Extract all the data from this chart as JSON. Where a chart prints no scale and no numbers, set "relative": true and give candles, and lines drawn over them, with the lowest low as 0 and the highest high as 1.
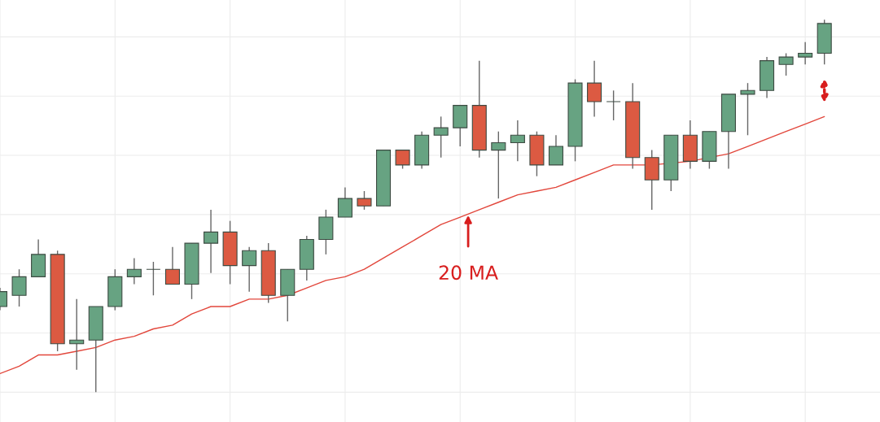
{
  "chart_data": {
    "type": "candlestick",
    "relative": true,
    "grid": true,
    "categories": [
      null,
      null,
      null,
      null,
      null,
      null,
      null,
      null,
      null,
      null,
      null,
      null,
      null,
      null,
      null,
      null,
      null,
      null,
      null,
      null,
      null,
      null,
      null,
      null,
      null,
      null,
      null,
      null,
      null,
      null,
      null,
      null,
      null,
      null,
      null,
      null,
      null,
      null,
      null,
      null,
      null,
      null,
      null,
      null
    ],
    "ohlc": [
      [
        0.23,
        0.28,
        0.22,
        0.27
      ],
      [
        0.26,
        0.33,
        0.23,
        0.31
      ],
      [
        0.31,
        0.41,
        0.31,
        0.37
      ],
      [
        0.37,
        0.38,
        0.11,
        0.13
      ],
      [
        0.13,
        0.25,
        0.06,
        0.14
      ],
      [
        0.14,
        0.23,
        0.0,
        0.23
      ],
      [
        0.23,
        0.33,
        0.22,
        0.31
      ],
      [
        0.31,
        0.36,
        0.29,
        0.33
      ],
      [
        0.33,
        0.35,
        0.26,
        0.33
      ],
      [
        0.33,
        0.39,
        0.29,
        0.29
      ],
      [
        0.29,
        0.4,
        0.25,
        0.4
      ],
      [
        0.4,
        0.49,
        0.32,
        0.43
      ],
      [
        0.43,
        0.46,
        0.29,
        0.34
      ],
      [
        0.34,
        0.39,
        0.27,
        0.38
      ],
      [
        0.38,
        0.4,
        0.24,
        0.26
      ],
      [
        0.26,
        0.33,
        0.19,
        0.33
      ],
      [
        0.33,
        0.42,
        0.3,
        0.41
      ],
      [
        0.41,
        0.49,
        0.37,
        0.47
      ],
      [
        0.47,
        0.55,
        0.47,
        0.52
      ],
      [
        0.52,
        0.54,
        0.49,
        0.5
      ],
      [
        0.5,
        0.65,
        0.5,
        0.65
      ],
      [
        0.65,
        0.65,
        0.6,
        0.61
      ],
      [
        0.61,
        0.7,
        0.6,
        0.69
      ],
      [
        0.69,
        0.74,
        0.63,
        0.71
      ],
      [
        0.71,
        0.77,
        0.66,
        0.77
      ],
      [
        0.77,
        0.89,
        0.63,
        0.65
      ],
      [
        0.65,
        0.7,
        0.52,
        0.67
      ],
      [
        0.67,
        0.73,
        0.62,
        0.69
      ],
      [
        0.69,
        0.7,
        0.58,
        0.61
      ],
      [
        0.61,
        0.69,
        0.61,
        0.66
      ],
      [
        0.66,
        0.84,
        0.62,
        0.83
      ],
      [
        0.83,
        0.89,
        0.74,
        0.78
      ],
      [
        0.78,
        0.81,
        0.73,
        0.78
      ],
      [
        0.78,
        0.83,
        0.6,
        0.63
      ],
      [
        0.63,
        0.65,
        0.49,
        0.57
      ],
      [
        0.57,
        0.69,
        0.54,
        0.69
      ],
      [
        0.69,
        0.73,
        0.6,
        0.62
      ],
      [
        0.62,
        0.7,
        0.6,
        0.7
      ],
      [
        0.7,
        0.8,
        0.6,
        0.8
      ],
      [
        0.8,
        0.83,
        0.69,
        0.81
      ],
      [
        0.81,
        0.9,
        0.79,
        0.89
      ],
      [
        0.88,
        0.91,
        0.85,
        0.9
      ],
      [
        0.9,
        0.94,
        0.88,
        0.91
      ],
      [
        0.91,
        1.0,
        0.88,
        0.99
      ]
    ],
    "colors": [
      "#67a382",
      "#67a382",
      "#67a382",
      "#dc5a42",
      "#67a382",
      "#67a382",
      "#67a382",
      "#67a382",
      "#3d4a42",
      "#dc5a42",
      "#67a382",
      "#67a382",
      "#dc5a42",
      "#67a382",
      "#dc5a42",
      "#67a382",
      "#67a382",
      "#67a382",
      "#67a382",
      "#dc5a42",
      "#67a382",
      "#dc5a42",
      "#67a382",
      "#67a382",
      "#67a382",
      "#dc5a42",
      "#67a382",
      "#67a382",
      "#dc5a42",
      "#67a382",
      "#67a382",
      "#dc5a42",
      "#3d4a42",
      "#dc5a42",
      "#dc5a42",
      "#67a382",
      "#dc5a42",
      "#67a382",
      "#67a382",
      "#67a382",
      "#67a382",
      "#67a382",
      "#67a382",
      "#67a382"
    ],
    "series": [
      {
        "type": "line",
        "color": "#e2473c",
        "values": [
          0.05,
          0.07,
          0.1,
          0.1,
          0.11,
          0.12,
          0.14,
          0.15,
          0.17,
          0.18,
          0.21,
          0.23,
          0.23,
          0.25,
          0.25,
          0.26,
          0.28,
          0.3,
          0.31,
          0.33,
          0.36,
          0.39,
          0.42,
          0.45,
          0.47,
          0.49,
          0.51,
          0.53,
          0.54,
          0.55,
          0.57,
          0.59,
          0.61,
          0.61,
          0.61,
          null,
          0.62,
          null,
          0.64,
          0.66,
          0.68,
          0.7,
          0.72,
          0.74
        ]
      }
    ],
    "annotations": [
      "20 MA"
    ]
  }
}
